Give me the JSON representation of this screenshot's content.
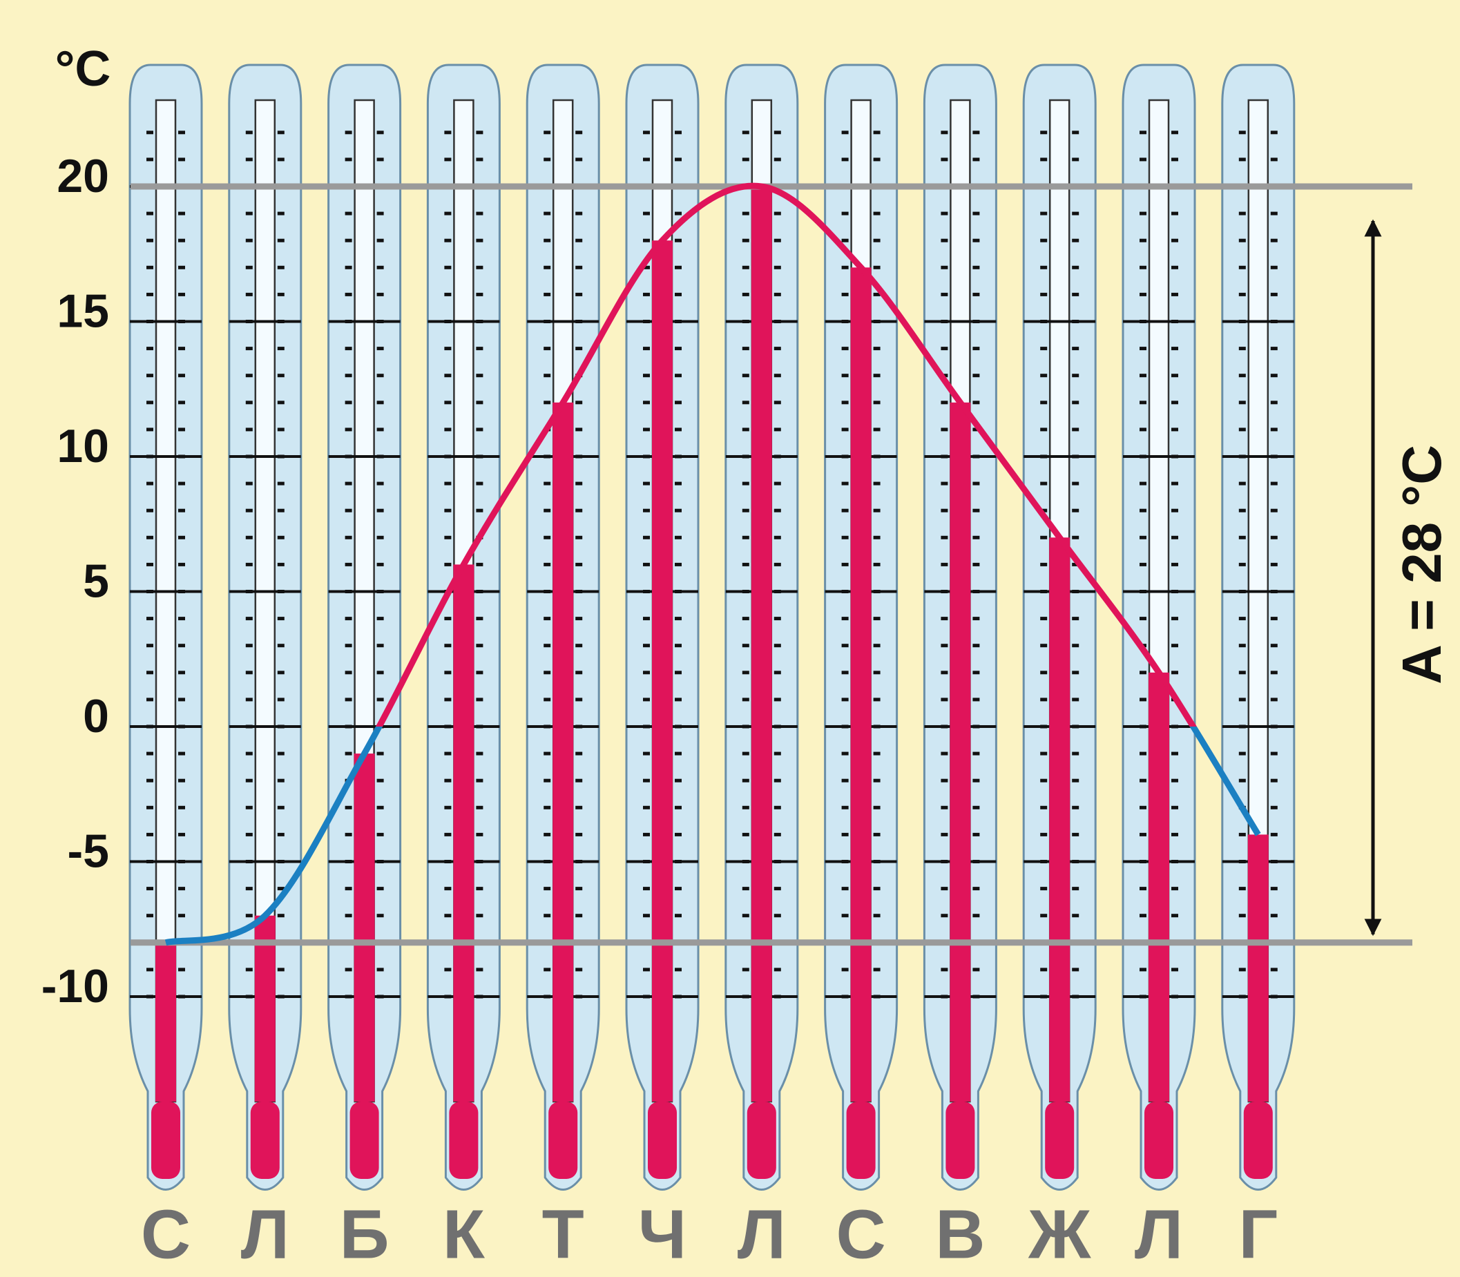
{
  "chart_data": {
    "type": "thermometer",
    "ylabel": "°C",
    "annotation": "A = 28 °C",
    "categories": [
      "С",
      "Л",
      "Б",
      "К",
      "Т",
      "Ч",
      "Л",
      "С",
      "В",
      "Ж",
      "Л",
      "Г"
    ],
    "values": [
      -8,
      -7,
      -1,
      6,
      12,
      18,
      20,
      17,
      12,
      7,
      2,
      -4
    ],
    "color": "#e0145a",
    "negative_color": "#1b80c2",
    "ylim": [
      -10,
      20
    ],
    "yticks": [
      -10,
      -5,
      0,
      5,
      10,
      15,
      20
    ]
  }
}
